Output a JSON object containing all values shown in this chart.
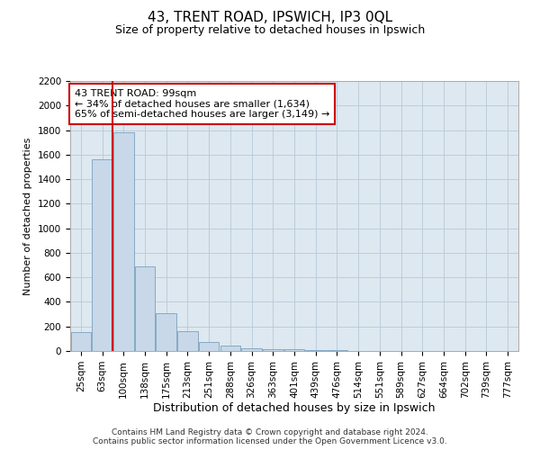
{
  "title": "43, TRENT ROAD, IPSWICH, IP3 0QL",
  "subtitle": "Size of property relative to detached houses in Ipswich",
  "xlabel": "Distribution of detached houses by size in Ipswich",
  "ylabel": "Number of detached properties",
  "footer_line1": "Contains HM Land Registry data © Crown copyright and database right 2024.",
  "footer_line2": "Contains public sector information licensed under the Open Government Licence v3.0.",
  "annotation_line1": "43 TRENT ROAD: 99sqm",
  "annotation_line2": "← 34% of detached houses are smaller (1,634)",
  "annotation_line3": "65% of semi-detached houses are larger (3,149) →",
  "bar_color": "#c8d8e8",
  "bar_edge_color": "#7aa0c0",
  "marker_line_color": "#cc0000",
  "annotation_box_facecolor": "#ffffff",
  "annotation_box_edgecolor": "#cc0000",
  "background_color": "#ffffff",
  "plot_bg_color": "#dde8f0",
  "grid_color": "#b8c8d8",
  "categories": [
    "25sqm",
    "63sqm",
    "100sqm",
    "138sqm",
    "175sqm",
    "213sqm",
    "251sqm",
    "288sqm",
    "326sqm",
    "363sqm",
    "401sqm",
    "439sqm",
    "476sqm",
    "514sqm",
    "551sqm",
    "589sqm",
    "627sqm",
    "664sqm",
    "702sqm",
    "739sqm",
    "777sqm"
  ],
  "values": [
    155,
    1560,
    1780,
    690,
    310,
    160,
    75,
    42,
    25,
    18,
    12,
    7,
    5,
    3,
    2,
    1,
    1,
    1,
    0,
    0,
    0
  ],
  "ylim": [
    0,
    2200
  ],
  "yticks": [
    0,
    200,
    400,
    600,
    800,
    1000,
    1200,
    1400,
    1600,
    1800,
    2000,
    2200
  ],
  "marker_bin_index": 2,
  "title_fontsize": 11,
  "subtitle_fontsize": 9,
  "ylabel_fontsize": 8,
  "xlabel_fontsize": 9,
  "tick_fontsize": 7.5,
  "annotation_fontsize": 8,
  "footer_fontsize": 6.5
}
